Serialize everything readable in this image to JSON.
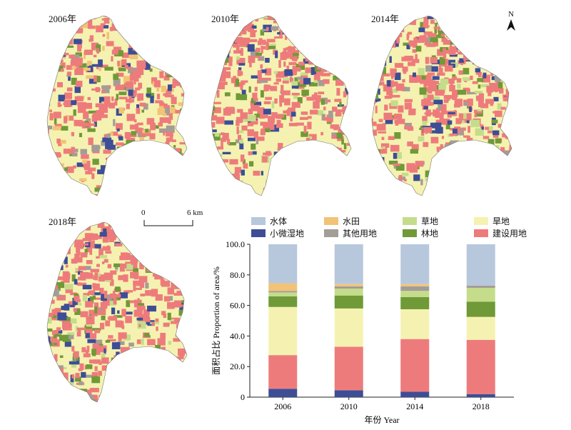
{
  "maps": {
    "labels": [
      "2006年",
      "2010年",
      "2014年",
      "2018年"
    ],
    "north_label": "N",
    "scale": {
      "start": "0",
      "end": "6 km"
    }
  },
  "colors": {
    "water": "#b7c8dc",
    "paddy": "#f2c375",
    "grass": "#c5dd8b",
    "dry": "#f5f2b1",
    "wetland": "#3d4e96",
    "other": "#a39d97",
    "forest": "#6f9a37",
    "built": "#ee7b7b"
  },
  "chart_data": {
    "type": "bar",
    "stacked": true,
    "categories": [
      "2006",
      "2010",
      "2014",
      "2018"
    ],
    "xlabel": "年份 Year",
    "ylabel": "面积占比 Proportion of area/%",
    "ylim": [
      0,
      100
    ],
    "yticks": [
      "0",
      "20.0",
      "40.0",
      "60.0",
      "80.0",
      "100.0"
    ],
    "legend_position": "top",
    "series": [
      {
        "name": "小微湿地",
        "key": "wetland",
        "values": [
          5.5,
          4.5,
          3.5,
          2.0
        ]
      },
      {
        "name": "建设用地",
        "key": "built",
        "values": [
          22.0,
          28.5,
          34.5,
          35.5
        ]
      },
      {
        "name": "旱地",
        "key": "dry",
        "values": [
          31.5,
          25.0,
          19.5,
          15.0
        ]
      },
      {
        "name": "林地",
        "key": "forest",
        "values": [
          7.0,
          8.5,
          8.0,
          10.0
        ]
      },
      {
        "name": "草地",
        "key": "grass",
        "values": [
          2.5,
          4.5,
          4.0,
          9.0
        ]
      },
      {
        "name": "其他用地",
        "key": "other",
        "values": [
          1.0,
          1.5,
          3.0,
          1.5
        ]
      },
      {
        "name": "水田",
        "key": "paddy",
        "values": [
          5.0,
          1.5,
          1.5,
          0.0
        ]
      },
      {
        "name": "水体",
        "key": "water",
        "values": [
          25.5,
          26.0,
          26.0,
          27.0
        ]
      }
    ],
    "legend_order": [
      "水体",
      "水田",
      "草地",
      "旱地",
      "小微湿地",
      "其他用地",
      "林地",
      "建设用地"
    ]
  }
}
